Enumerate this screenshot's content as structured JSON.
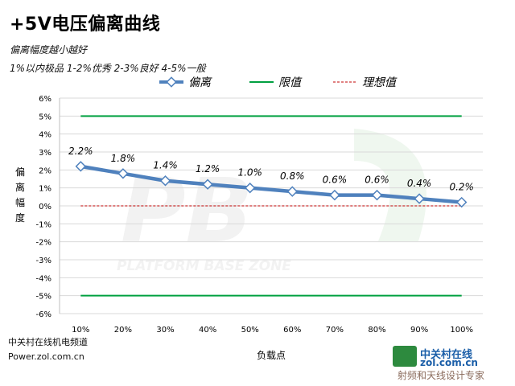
{
  "title": "+5V电压偏离曲线",
  "subtitle1": "偏离幅度越小越好",
  "subtitle2": "1%以内极品 1-2%优秀 2-3%良好 4-5%一般",
  "footer1": "中关村在线机电频道",
  "footer2": "Power.zol.com.cn",
  "watermark_bg": "PB PLATFORM BASE ZONE",
  "watermark_logo": "中关村在线 zol.com.cn 射频和天线设计专家",
  "colors": {
    "series": "#4f81bd",
    "limit": "#00a040",
    "ideal": "#c00000",
    "grid": "#d9d9d9"
  },
  "chart_data": {
    "type": "line",
    "categories": [
      "10%",
      "20%",
      "30%",
      "40%",
      "50%",
      "60%",
      "70%",
      "80%",
      "90%",
      "100%"
    ],
    "series": [
      {
        "name": "偏离",
        "values": [
          2.2,
          1.8,
          1.4,
          1.2,
          1.0,
          0.8,
          0.6,
          0.6,
          0.4,
          0.2
        ],
        "labels": [
          "2.2%",
          "1.8%",
          "1.4%",
          "1.2%",
          "1.0%",
          "0.8%",
          "0.6%",
          "0.6%",
          "0.4%",
          "0.2%"
        ]
      },
      {
        "name": "限值",
        "values": [
          5,
          5,
          5,
          5,
          5,
          5,
          5,
          5,
          5,
          5
        ],
        "mirror": -5
      },
      {
        "name": "理想值",
        "values": [
          0,
          0,
          0,
          0,
          0,
          0,
          0,
          0,
          0,
          0
        ]
      }
    ],
    "xlabel": "负载点",
    "ylabel": "偏离幅度",
    "ylim": [
      -6,
      6
    ],
    "yticks": [
      6,
      5,
      4,
      3,
      2,
      1,
      0,
      -1,
      -2,
      -3,
      -4,
      -5,
      -6
    ],
    "ytick_labels": [
      "6%",
      "5%",
      "4%",
      "3%",
      "2%",
      "1%",
      "0%",
      "-1%",
      "-2%",
      "-3%",
      "-4%",
      "-5%",
      "-6%"
    ],
    "grid": true,
    "legend": "top"
  }
}
